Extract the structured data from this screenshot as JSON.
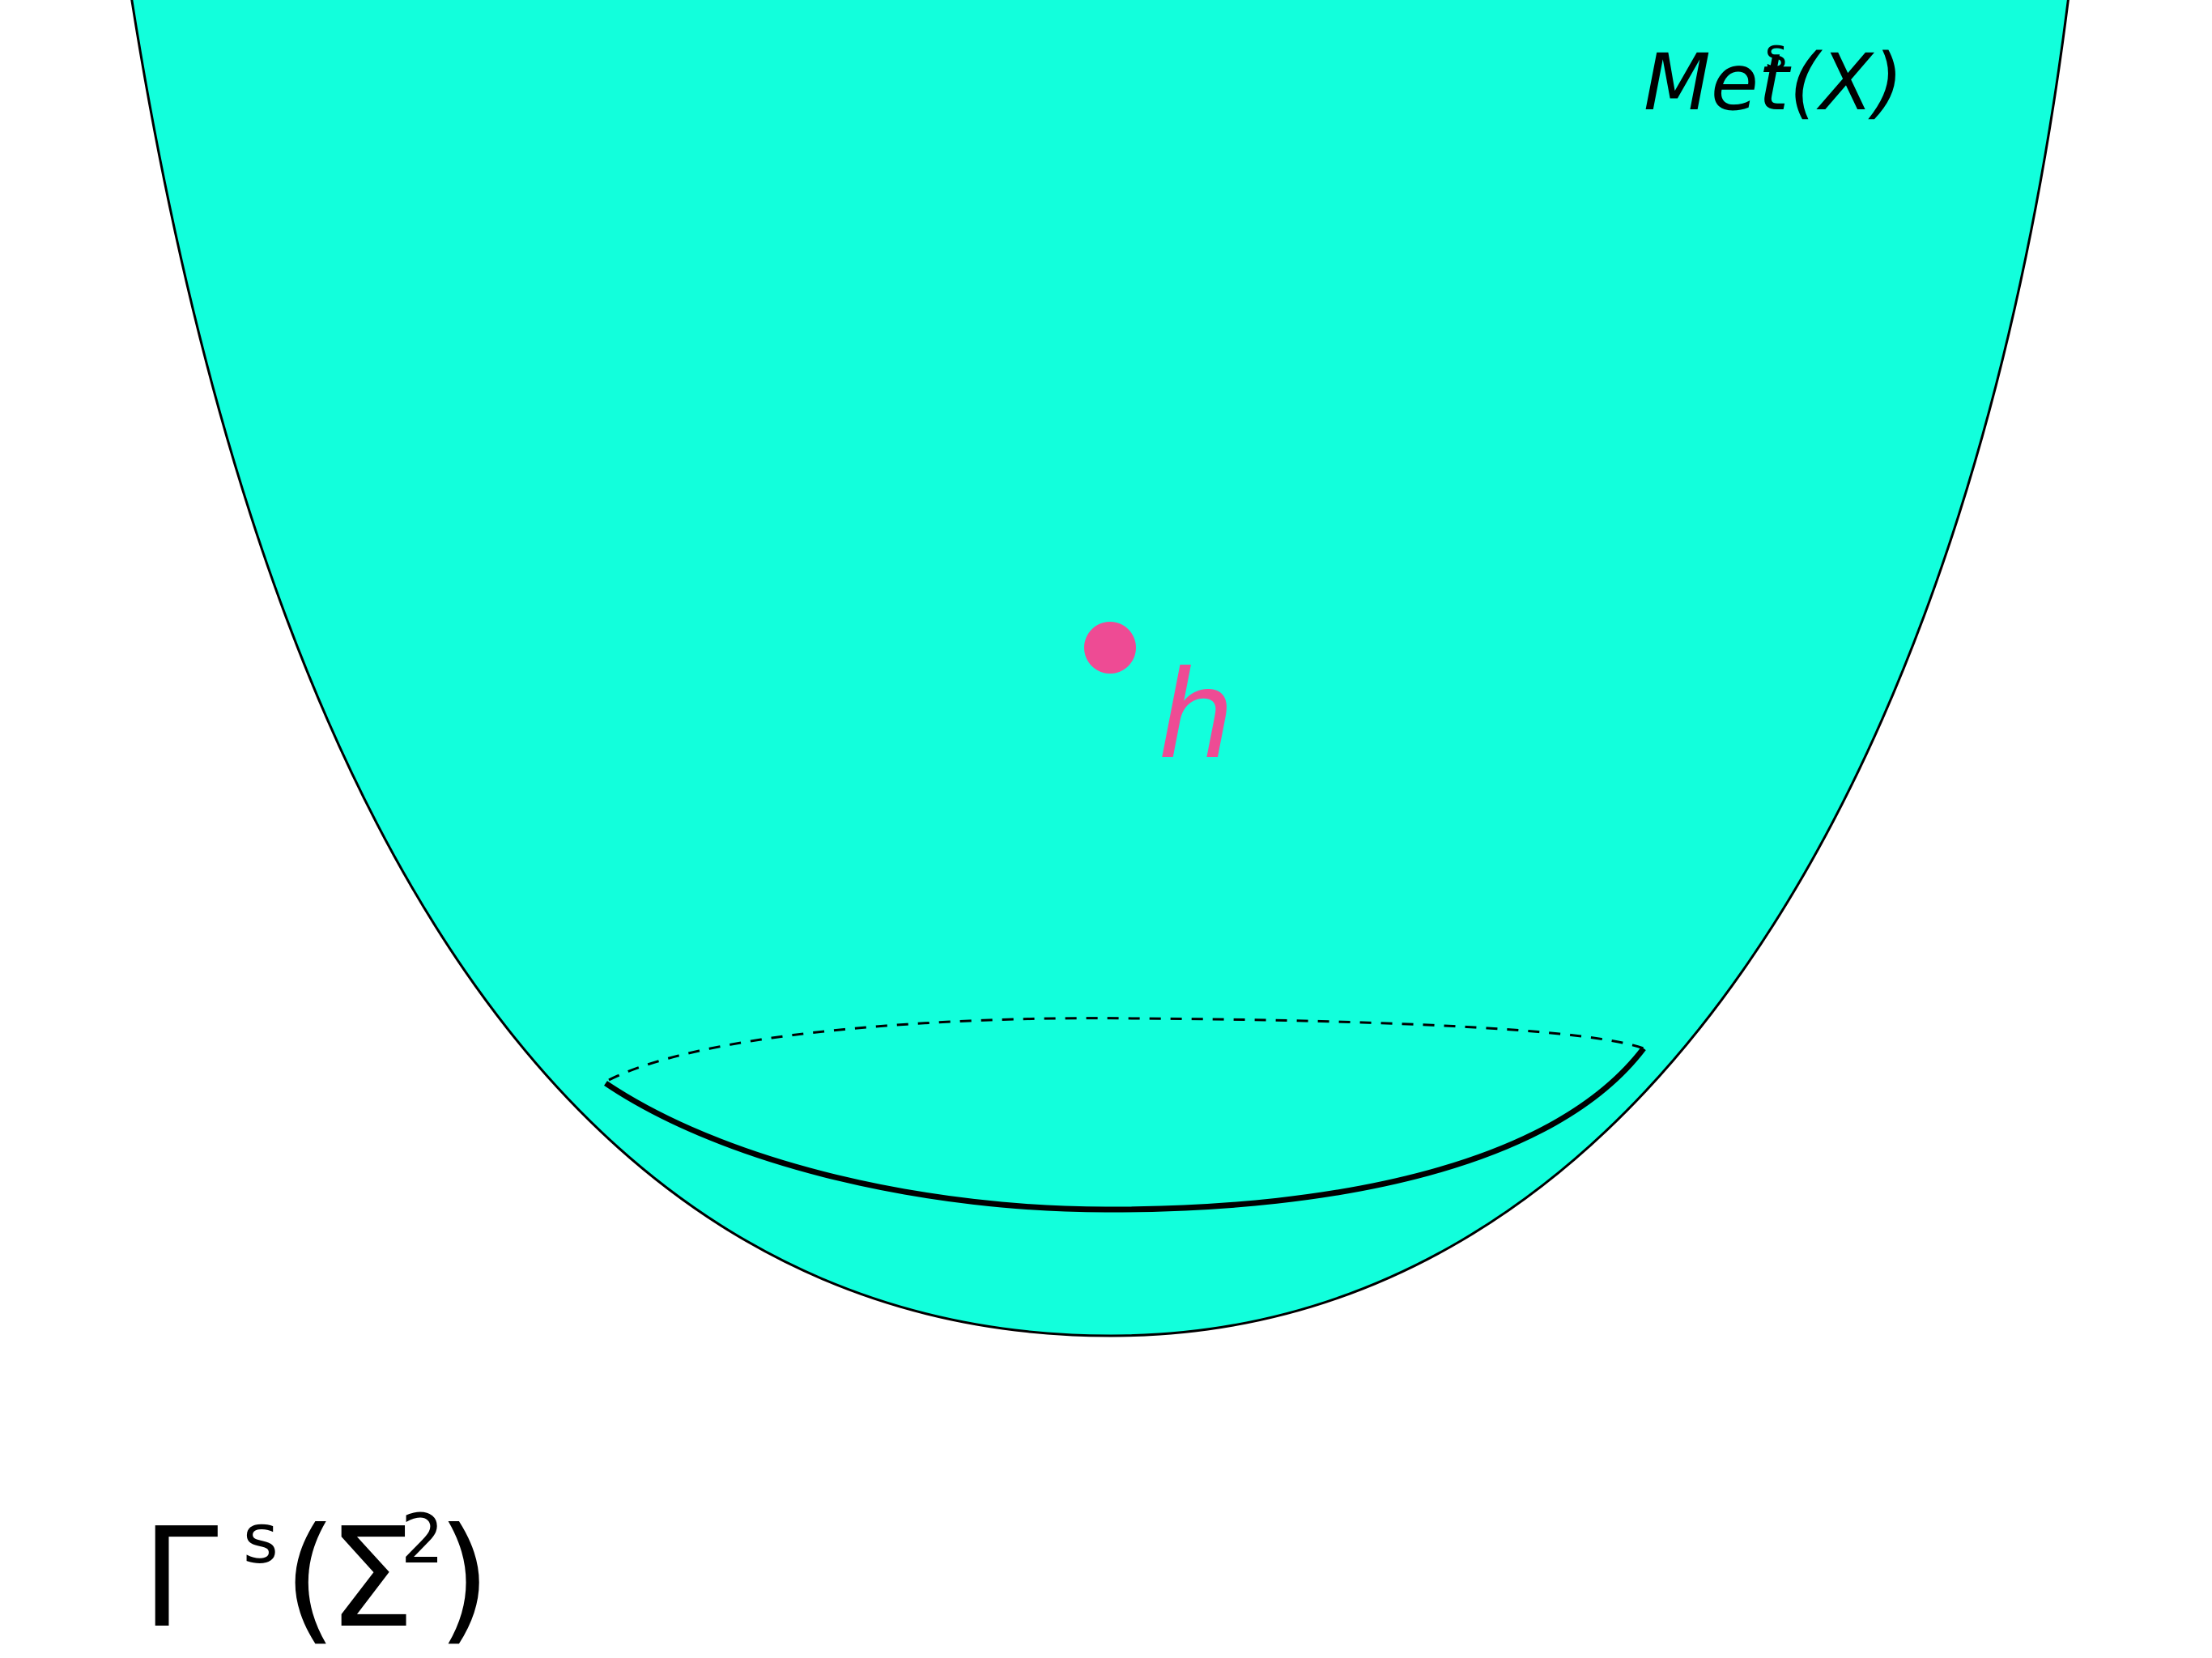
{
  "diagram": {
    "surface": {
      "label": "Met",
      "label_sup": "s",
      "label_arg": "(X)",
      "fill_color": "#12ffdc",
      "outline_color": "#000000"
    },
    "point": {
      "label": "h",
      "color": "#ee4b94"
    },
    "slice_curve": {
      "color": "#000000",
      "back_style": "dashed"
    },
    "section_label": {
      "symbol": "Γ",
      "sup": "s",
      "open": "(",
      "arg": "Σ",
      "arg_sup": "2",
      "close": ")"
    }
  }
}
